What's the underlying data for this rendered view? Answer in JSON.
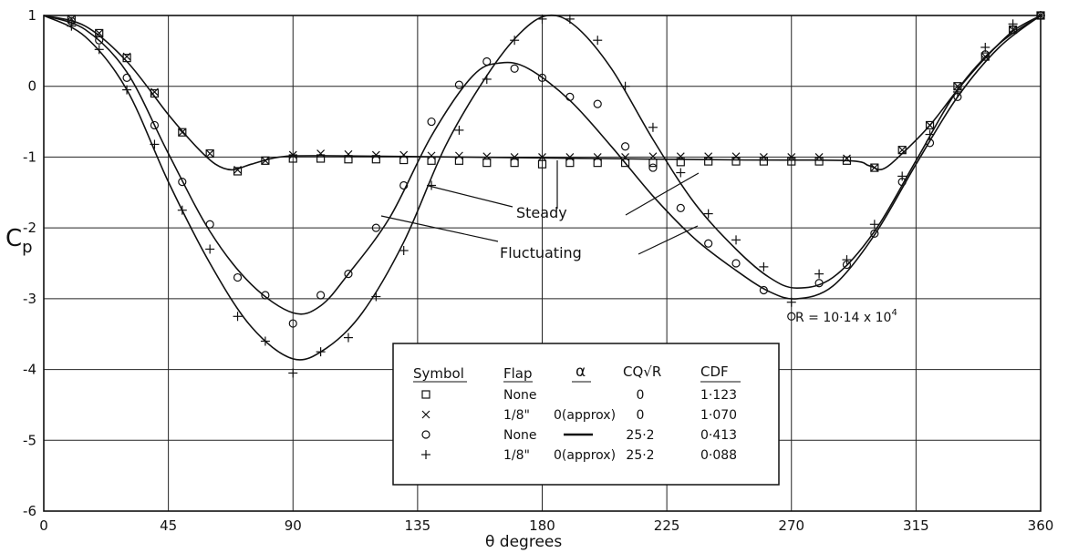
{
  "chart_data": {
    "type": "scatter",
    "xlabel": "θ degrees",
    "ylabel": "Cp",
    "xlim": [
      0,
      360
    ],
    "ylim": [
      -6,
      1
    ],
    "x_ticks": [
      0,
      45,
      90,
      135,
      180,
      225,
      270,
      315,
      360
    ],
    "x_tick_labels": [
      "0",
      "45",
      "90",
      "135",
      "180",
      "225",
      "270",
      "315",
      "360"
    ],
    "y_ticks": [
      1,
      0,
      -1,
      -2,
      -3,
      -4,
      -5,
      -6
    ],
    "y_tick_labels": [
      "1",
      "0",
      "-1",
      "-2",
      "-3",
      "-4",
      "-5",
      "-6"
    ],
    "grid": true,
    "annotations": {
      "reynolds": "R = 10·14 x 10",
      "reynolds_exp": "4",
      "steady": "Steady",
      "fluctuating": "Fluctuating"
    },
    "table": {
      "headers": [
        "Symbol",
        "Flap",
        "α",
        "CQ√R",
        "CDF"
      ],
      "rows": [
        {
          "symbol": "□",
          "flap": "None",
          "alpha": "",
          "cq": "0",
          "cdf": "1·123"
        },
        {
          "symbol": "×",
          "flap": "1/8\"",
          "alpha": "0(approx)",
          "cq": "0",
          "cdf": "1·070"
        },
        {
          "symbol": "○",
          "flap": "None",
          "alpha": "—",
          "cq": "25·2",
          "cdf": "0·413"
        },
        {
          "symbol": "+",
          "flap": "1/8\"",
          "alpha": "0(approx)",
          "cq": "25·2",
          "cdf": "0·088"
        }
      ]
    },
    "series": [
      {
        "symbol": "square",
        "points": [
          [
            10,
            0.95
          ],
          [
            20,
            0.75
          ],
          [
            30,
            0.4
          ],
          [
            40,
            -0.1
          ],
          [
            50,
            -0.65
          ],
          [
            60,
            -0.95
          ],
          [
            70,
            -1.2
          ],
          [
            80,
            -1.05
          ],
          [
            90,
            -1.02
          ],
          [
            100,
            -1.02
          ],
          [
            110,
            -1.03
          ],
          [
            120,
            -1.03
          ],
          [
            130,
            -1.04
          ],
          [
            140,
            -1.05
          ],
          [
            150,
            -1.05
          ],
          [
            160,
            -1.08
          ],
          [
            170,
            -1.08
          ],
          [
            180,
            -1.1
          ],
          [
            190,
            -1.08
          ],
          [
            200,
            -1.08
          ],
          [
            210,
            -1.08
          ],
          [
            220,
            -1.08
          ],
          [
            230,
            -1.07
          ],
          [
            240,
            -1.06
          ],
          [
            250,
            -1.06
          ],
          [
            260,
            -1.06
          ],
          [
            270,
            -1.06
          ],
          [
            280,
            -1.06
          ],
          [
            290,
            -1.05
          ],
          [
            300,
            -1.15
          ],
          [
            310,
            -0.9
          ],
          [
            320,
            -0.55
          ],
          [
            330,
            0.0
          ],
          [
            340,
            0.42
          ],
          [
            350,
            0.8
          ],
          [
            360,
            1.0
          ]
        ]
      },
      {
        "symbol": "cross",
        "points": [
          [
            10,
            0.95
          ],
          [
            20,
            0.75
          ],
          [
            30,
            0.42
          ],
          [
            40,
            -0.08
          ],
          [
            50,
            -0.65
          ],
          [
            60,
            -0.95
          ],
          [
            70,
            -1.18
          ],
          [
            80,
            -1.05
          ],
          [
            90,
            -0.97
          ],
          [
            100,
            -0.95
          ],
          [
            110,
            -0.96
          ],
          [
            120,
            -0.97
          ],
          [
            130,
            -0.97
          ],
          [
            140,
            -0.98
          ],
          [
            150,
            -0.98
          ],
          [
            160,
            -0.99
          ],
          [
            170,
            -1.0
          ],
          [
            180,
            -1.0
          ],
          [
            190,
            -1.0
          ],
          [
            200,
            -1.0
          ],
          [
            210,
            -1.0
          ],
          [
            220,
            -0.99
          ],
          [
            230,
            -0.99
          ],
          [
            240,
            -0.99
          ],
          [
            250,
            -0.99
          ],
          [
            260,
            -1.0
          ],
          [
            270,
            -1.0
          ],
          [
            280,
            -1.0
          ],
          [
            290,
            -1.02
          ],
          [
            300,
            -1.15
          ],
          [
            310,
            -0.9
          ],
          [
            320,
            -0.55
          ],
          [
            330,
            0.0
          ],
          [
            340,
            0.42
          ],
          [
            350,
            0.8
          ],
          [
            360,
            1.0
          ]
        ]
      },
      {
        "symbol": "circle",
        "points": [
          [
            10,
            0.92
          ],
          [
            20,
            0.65
          ],
          [
            30,
            0.12
          ],
          [
            40,
            -0.55
          ],
          [
            50,
            -1.35
          ],
          [
            60,
            -1.95
          ],
          [
            70,
            -2.7
          ],
          [
            80,
            -2.95
          ],
          [
            90,
            -3.35
          ],
          [
            100,
            -2.95
          ],
          [
            110,
            -2.65
          ],
          [
            120,
            -2.0
          ],
          [
            130,
            -1.4
          ],
          [
            140,
            -0.5
          ],
          [
            150,
            0.02
          ],
          [
            160,
            0.35
          ],
          [
            170,
            0.25
          ],
          [
            180,
            0.12
          ],
          [
            190,
            -0.15
          ],
          [
            200,
            -0.25
          ],
          [
            210,
            -0.85
          ],
          [
            220,
            -1.15
          ],
          [
            230,
            -1.72
          ],
          [
            240,
            -2.22
          ],
          [
            250,
            -2.5
          ],
          [
            260,
            -2.88
          ],
          [
            270,
            -3.25
          ],
          [
            280,
            -2.78
          ],
          [
            290,
            -2.52
          ],
          [
            300,
            -2.08
          ],
          [
            310,
            -1.35
          ],
          [
            320,
            -0.8
          ],
          [
            330,
            -0.15
          ],
          [
            340,
            0.45
          ],
          [
            350,
            0.8
          ],
          [
            360,
            1.0
          ]
        ]
      },
      {
        "symbol": "plus",
        "points": [
          [
            10,
            0.85
          ],
          [
            20,
            0.52
          ],
          [
            30,
            -0.05
          ],
          [
            40,
            -0.82
          ],
          [
            50,
            -1.75
          ],
          [
            60,
            -2.3
          ],
          [
            70,
            -3.25
          ],
          [
            80,
            -3.6
          ],
          [
            90,
            -4.05
          ],
          [
            100,
            -3.75
          ],
          [
            110,
            -3.55
          ],
          [
            120,
            -2.97
          ],
          [
            130,
            -2.32
          ],
          [
            140,
            -1.4
          ],
          [
            150,
            -0.62
          ],
          [
            160,
            0.1
          ],
          [
            170,
            0.65
          ],
          [
            180,
            0.95
          ],
          [
            190,
            0.95
          ],
          [
            200,
            0.65
          ],
          [
            210,
            0.0
          ],
          [
            220,
            -0.58
          ],
          [
            230,
            -1.22
          ],
          [
            240,
            -1.8
          ],
          [
            250,
            -2.17
          ],
          [
            260,
            -2.55
          ],
          [
            270,
            -3.05
          ],
          [
            280,
            -2.65
          ],
          [
            290,
            -2.45
          ],
          [
            300,
            -1.95
          ],
          [
            310,
            -1.27
          ],
          [
            320,
            -0.68
          ],
          [
            330,
            -0.08
          ],
          [
            340,
            0.55
          ],
          [
            350,
            0.88
          ],
          [
            360,
            1.0
          ]
        ]
      }
    ],
    "curves": [
      {
        "name": "steady",
        "points": [
          [
            0,
            1.0
          ],
          [
            15,
            0.85
          ],
          [
            30,
            0.35
          ],
          [
            45,
            -0.4
          ],
          [
            55,
            -0.85
          ],
          [
            62,
            -1.1
          ],
          [
            68,
            -1.18
          ],
          [
            75,
            -1.1
          ],
          [
            85,
            -1.0
          ],
          [
            100,
            -0.98
          ],
          [
            150,
            -1.0
          ],
          [
            200,
            -1.02
          ],
          [
            250,
            -1.04
          ],
          [
            290,
            -1.05
          ],
          [
            298,
            -1.12
          ],
          [
            303,
            -1.17
          ],
          [
            310,
            -0.95
          ],
          [
            320,
            -0.55
          ],
          [
            330,
            -0.05
          ],
          [
            340,
            0.4
          ],
          [
            350,
            0.78
          ],
          [
            360,
            1.0
          ]
        ]
      },
      {
        "name": "fluctuating-o",
        "points": [
          [
            0,
            1.0
          ],
          [
            15,
            0.8
          ],
          [
            30,
            0.2
          ],
          [
            45,
            -0.95
          ],
          [
            60,
            -2.05
          ],
          [
            75,
            -2.8
          ],
          [
            90,
            -3.2
          ],
          [
            100,
            -3.1
          ],
          [
            110,
            -2.65
          ],
          [
            125,
            -1.85
          ],
          [
            140,
            -0.7
          ],
          [
            155,
            0.15
          ],
          [
            165,
            0.33
          ],
          [
            175,
            0.25
          ],
          [
            190,
            -0.2
          ],
          [
            205,
            -0.85
          ],
          [
            220,
            -1.55
          ],
          [
            235,
            -2.15
          ],
          [
            250,
            -2.6
          ],
          [
            262,
            -2.9
          ],
          [
            272,
            -3.0
          ],
          [
            285,
            -2.82
          ],
          [
            300,
            -2.1
          ],
          [
            315,
            -1.1
          ],
          [
            330,
            -0.15
          ],
          [
            345,
            0.55
          ],
          [
            360,
            1.0
          ]
        ]
      },
      {
        "name": "fluctuating-plus",
        "points": [
          [
            0,
            1.0
          ],
          [
            15,
            0.7
          ],
          [
            30,
            -0.05
          ],
          [
            45,
            -1.35
          ],
          [
            60,
            -2.5
          ],
          [
            75,
            -3.4
          ],
          [
            90,
            -3.85
          ],
          [
            102,
            -3.7
          ],
          [
            115,
            -3.2
          ],
          [
            130,
            -2.2
          ],
          [
            145,
            -0.85
          ],
          [
            160,
            0.15
          ],
          [
            172,
            0.75
          ],
          [
            182,
            1.0
          ],
          [
            192,
            0.85
          ],
          [
            205,
            0.25
          ],
          [
            220,
            -0.75
          ],
          [
            235,
            -1.65
          ],
          [
            250,
            -2.3
          ],
          [
            262,
            -2.7
          ],
          [
            272,
            -2.85
          ],
          [
            285,
            -2.7
          ],
          [
            300,
            -2.05
          ],
          [
            315,
            -1.05
          ],
          [
            330,
            -0.05
          ],
          [
            345,
            0.6
          ],
          [
            360,
            1.0
          ]
        ]
      }
    ]
  }
}
